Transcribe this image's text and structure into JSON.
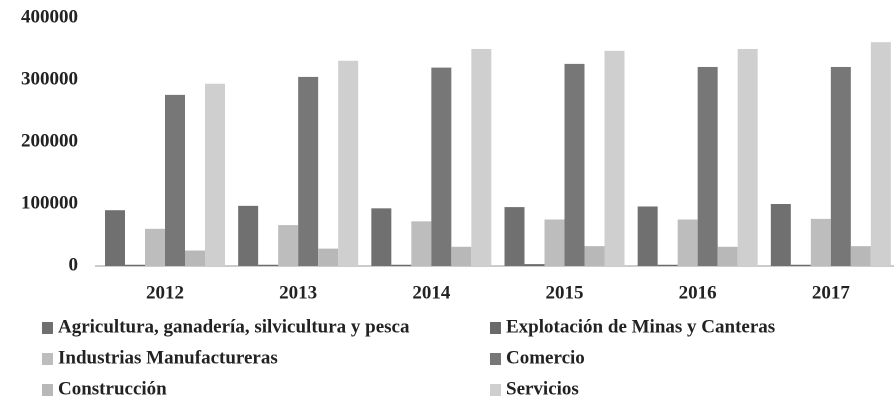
{
  "chart_data": {
    "type": "bar",
    "categories": [
      "2012",
      "2013",
      "2014",
      "2015",
      "2016",
      "2017"
    ],
    "series": [
      {
        "name": "Agricultura, ganadería, silvicultura y pesca",
        "color": "#707070",
        "values": [
          90000,
          97000,
          93000,
          95000,
          96000,
          100000
        ]
      },
      {
        "name": "Explotación de Minas y Canteras",
        "color": "#6a6a6a",
        "values": [
          2000,
          2000,
          2000,
          3000,
          2000,
          2000
        ]
      },
      {
        "name": "Industrias Manufactureras",
        "color": "#bdbdbd",
        "values": [
          60000,
          66000,
          72000,
          75000,
          75000,
          76000
        ]
      },
      {
        "name": "Comercio",
        "color": "#777777",
        "values": [
          276000,
          305000,
          320000,
          326000,
          321000,
          321000
        ]
      },
      {
        "name": "Construcción",
        "color": "#b8b8b8",
        "values": [
          25000,
          28000,
          31000,
          32000,
          31000,
          32000
        ]
      },
      {
        "name": "Servicios",
        "color": "#cfcfcf",
        "values": [
          294000,
          331000,
          350000,
          347000,
          350000,
          361000
        ]
      }
    ],
    "ylim": [
      0,
      400000
    ],
    "yticks": [
      0,
      100000,
      200000,
      300000,
      400000
    ],
    "legend": "bottom"
  }
}
